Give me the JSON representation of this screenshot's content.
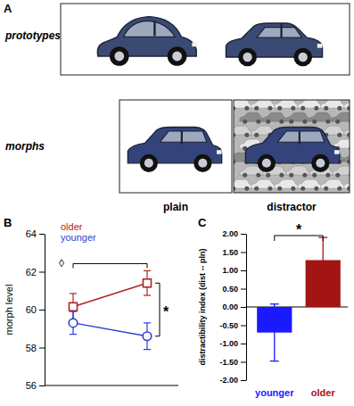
{
  "panel_a": {
    "label": "A",
    "row_labels": [
      "prototypes",
      "morphs"
    ],
    "conditions": [
      "plain",
      "distractor"
    ]
  },
  "chart_data": [
    {
      "type": "line",
      "title": "B",
      "categories": [
        null,
        null
      ],
      "tick_labels": "y",
      "y_label": "morph level",
      "ylim": [
        56,
        64
      ],
      "yticks": [
        56,
        58,
        60,
        62,
        64
      ],
      "legend": "top-left",
      "series": [
        {
          "name": "older",
          "color": "#b22222",
          "marker": "square",
          "values": [
            60.15,
            61.4
          ],
          "errors": [
            0.7,
            0.65
          ]
        },
        {
          "name": "younger",
          "color": "#2a3fd6",
          "marker": "circle",
          "values": [
            59.3,
            58.6
          ],
          "errors": [
            0.6,
            0.7
          ]
        }
      ],
      "annotations": [
        "◊",
        "*"
      ]
    },
    {
      "type": "bar",
      "title": "C",
      "categories": [
        "younger",
        "older"
      ],
      "values": [
        -0.7,
        1.28
      ],
      "errors": [
        0.78,
        0.62
      ],
      "colors": [
        "#1a1aff",
        "#a31515"
      ],
      "y_label": "distractibility index (dist -- pln)",
      "ylim": [
        -2,
        2
      ],
      "yticks": [
        {
          "value": -2,
          "label": "-2.00"
        },
        {
          "value": -1.5,
          "label": "-1.50"
        },
        {
          "value": -1,
          "label": "-1.00"
        },
        {
          "value": -0.5,
          "label": "-0.50"
        },
        {
          "value": 0,
          "label": "0.00"
        },
        {
          "value": 0.5,
          "label": "0.50"
        },
        {
          "value": 1,
          "label": "1.00"
        },
        {
          "value": 1.5,
          "label": "1.50"
        },
        {
          "value": 2,
          "label": "2.00"
        }
      ],
      "annotations": [
        "*"
      ]
    }
  ]
}
